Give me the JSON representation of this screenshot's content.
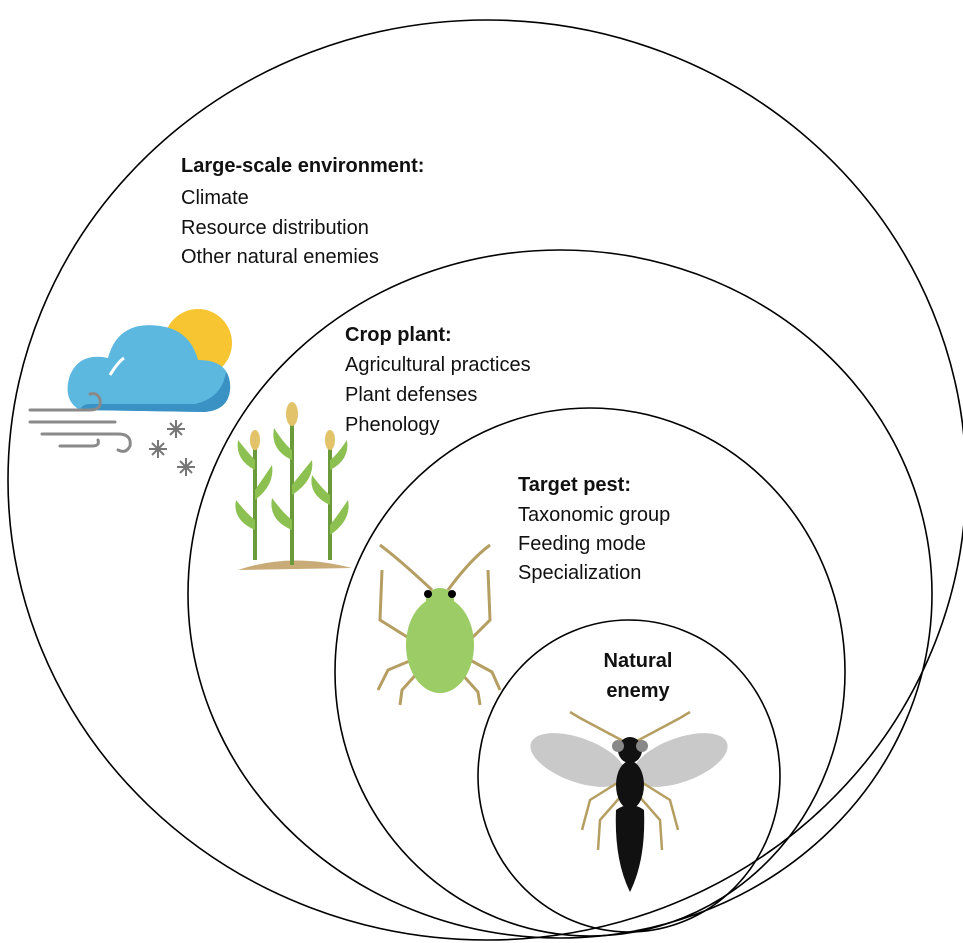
{
  "levels": [
    {
      "title": "Large-scale environment:",
      "items": [
        "Climate",
        "Resource distribution",
        "Other natural enemies"
      ]
    },
    {
      "title": "Crop plant:",
      "items": [
        "Agricultural practices",
        "Plant defenses",
        "Phenology"
      ]
    },
    {
      "title": "Target pest:",
      "items": [
        "Taxonomic group",
        "Feeding mode",
        "Specialization"
      ]
    },
    {
      "title_lines": [
        "Natural",
        "enemy"
      ]
    }
  ]
}
